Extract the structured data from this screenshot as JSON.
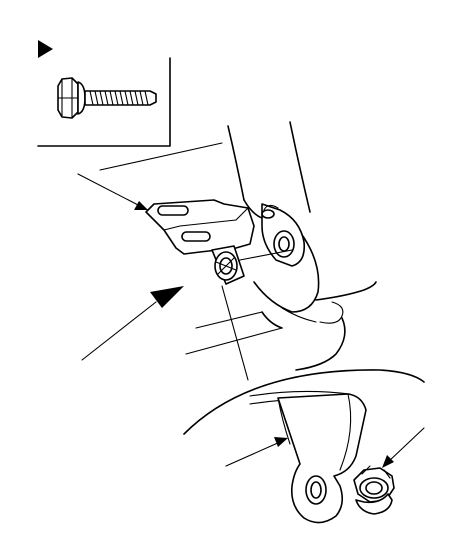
{
  "figure": {
    "inset_marker": "triangle-pointer-icon",
    "inset_part": "flange-bolt-icon",
    "parts": [
      "mounting-bracket",
      "bracket-clip",
      "hinge-bolt",
      "lower-link",
      "flange-nut"
    ],
    "callouts": [
      "leader-upper-bracket",
      "leader-clip-bold",
      "leader-lower-link",
      "leader-flange-nut"
    ]
  },
  "colors": {
    "line": "#000000",
    "background": "#ffffff"
  }
}
